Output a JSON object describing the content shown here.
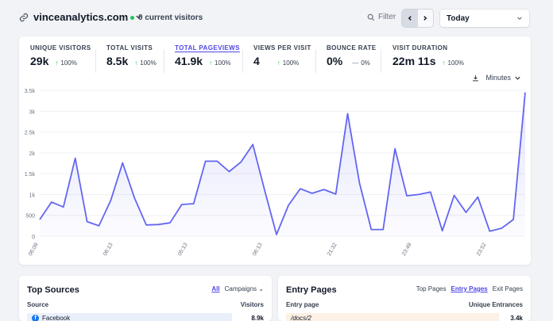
{
  "header": {
    "domain": "vinceanalytics.com",
    "current_visitors": "0 current visitors",
    "filter_label": "Filter",
    "period": "Today"
  },
  "metrics": [
    {
      "label": "UNIQUE VISITORS",
      "value": "29k",
      "change": "100%",
      "trend": "up"
    },
    {
      "label": "TOTAL VISITS",
      "value": "8.5k",
      "change": "100%",
      "trend": "up"
    },
    {
      "label": "TOTAL PAGEVIEWS",
      "value": "41.9k",
      "change": "100%",
      "trend": "up",
      "active": true
    },
    {
      "label": "VIEWS PER VISIT",
      "value": "4",
      "change": "100%",
      "trend": "up"
    },
    {
      "label": "BOUNCE RATE",
      "value": "0%",
      "change": "0%",
      "trend": "flat"
    },
    {
      "label": "VISIT DURATION",
      "value": "22m 11s",
      "change": "100%",
      "trend": "up"
    }
  ],
  "chart_controls": {
    "interval": "Minutes"
  },
  "chart_data": {
    "type": "area",
    "title": "",
    "xlabel": "",
    "ylabel": "",
    "ylim": [
      0,
      3500
    ],
    "y_ticks": [
      "0",
      "500",
      "1k",
      "1.5k",
      "2k",
      "2.5k",
      "3k",
      "3.5k"
    ],
    "x_ticks": [
      "06:09",
      "06:13",
      "05:13",
      "06:13",
      "21:32",
      "23:49",
      "23:52"
    ],
    "grid": true,
    "color": "#6366f1",
    "values": [
      400,
      820,
      700,
      1870,
      350,
      250,
      860,
      1760,
      920,
      270,
      280,
      320,
      760,
      780,
      1800,
      1800,
      1550,
      1780,
      2200,
      1100,
      40,
      740,
      1140,
      1030,
      1120,
      1010,
      2940,
      1280,
      160,
      160,
      2100,
      970,
      1000,
      1060,
      130,
      980,
      570,
      940,
      120,
      190,
      400,
      3450
    ]
  },
  "top_sources": {
    "title": "Top Sources",
    "tab_all": "All",
    "tab_campaigns": "Campaigns",
    "col_source": "Source",
    "col_visitors": "Visitors",
    "row_name": "Facebook",
    "row_value": "8.9k"
  },
  "entry_pages": {
    "title": "Entry Pages",
    "tab_top": "Top Pages",
    "tab_entry": "Entry Pages",
    "tab_exit": "Exit Pages",
    "col_page": "Entry page",
    "col_entrances": "Unique Entrances",
    "row_name": "/docs/2",
    "row_value": "3.4k"
  }
}
